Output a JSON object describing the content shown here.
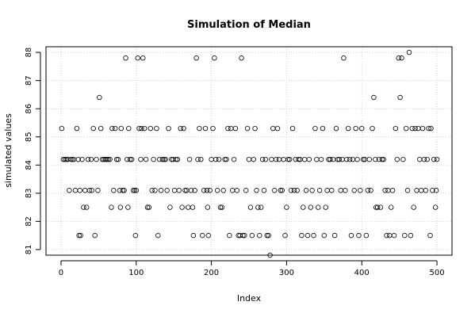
{
  "chart_data": {
    "type": "scatter",
    "title": "Simulation of Median",
    "xlabel": "Index",
    "ylabel": "simulated values",
    "xlim": [
      -20,
      520
    ],
    "ylim": [
      80.8,
      88.2
    ],
    "xticks": [
      0,
      100,
      200,
      300,
      400,
      500
    ],
    "yticks": [
      81,
      82,
      83,
      84,
      85,
      86,
      87,
      88
    ],
    "grid": true,
    "legend": "none",
    "marker": "open-circle",
    "series": [
      {
        "points": [
          [
            1,
            85.3
          ],
          [
            3,
            84.2
          ],
          [
            5,
            84.2
          ],
          [
            7,
            84.2
          ],
          [
            9,
            84.2
          ],
          [
            11,
            83.1
          ],
          [
            13,
            84.2
          ],
          [
            15,
            84.2
          ],
          [
            17,
            84.2
          ],
          [
            19,
            83.1
          ],
          [
            21,
            85.3
          ],
          [
            23,
            84.2
          ],
          [
            24,
            81.5
          ],
          [
            25,
            83.1
          ],
          [
            26,
            81.5
          ],
          [
            28,
            84.2
          ],
          [
            30,
            82.5
          ],
          [
            32,
            83.1
          ],
          [
            34,
            82.5
          ],
          [
            36,
            84.2
          ],
          [
            38,
            83.1
          ],
          [
            40,
            84.2
          ],
          [
            41,
            83.1
          ],
          [
            43,
            85.3
          ],
          [
            45,
            81.5
          ],
          [
            47,
            84.2
          ],
          [
            49,
            83.1
          ],
          [
            51,
            86.4
          ],
          [
            53,
            85.3
          ],
          [
            55,
            84.2
          ],
          [
            57,
            84.2
          ],
          [
            59,
            84.2
          ],
          [
            61,
            84.2
          ],
          [
            63,
            84.2
          ],
          [
            65,
            84.2
          ],
          [
            67,
            82.5
          ],
          [
            68,
            85.3
          ],
          [
            70,
            83.1
          ],
          [
            72,
            85.3
          ],
          [
            74,
            84.2
          ],
          [
            76,
            84.2
          ],
          [
            78,
            83.1
          ],
          [
            79,
            82.5
          ],
          [
            80,
            85.3
          ],
          [
            82,
            83.1
          ],
          [
            84,
            83.1
          ],
          [
            86,
            87.8
          ],
          [
            88,
            84.2
          ],
          [
            89,
            82.5
          ],
          [
            90,
            85.3
          ],
          [
            92,
            84.2
          ],
          [
            94,
            84.2
          ],
          [
            96,
            83.1
          ],
          [
            98,
            83.1
          ],
          [
            99,
            81.5
          ],
          [
            100,
            83.1
          ],
          [
            102,
            87.8
          ],
          [
            104,
            85.3
          ],
          [
            106,
            84.2
          ],
          [
            107,
            85.3
          ],
          [
            109,
            87.8
          ],
          [
            111,
            85.3
          ],
          [
            113,
            84.2
          ],
          [
            115,
            82.5
          ],
          [
            117,
            82.5
          ],
          [
            119,
            85.3
          ],
          [
            121,
            83.1
          ],
          [
            123,
            84.2
          ],
          [
            125,
            83.1
          ],
          [
            127,
            85.3
          ],
          [
            129,
            81.5
          ],
          [
            131,
            84.2
          ],
          [
            133,
            83.1
          ],
          [
            135,
            84.2
          ],
          [
            137,
            84.2
          ],
          [
            139,
            84.2
          ],
          [
            141,
            83.1
          ],
          [
            143,
            85.3
          ],
          [
            145,
            82.5
          ],
          [
            147,
            84.2
          ],
          [
            149,
            84.2
          ],
          [
            151,
            83.1
          ],
          [
            153,
            84.2
          ],
          [
            155,
            84.2
          ],
          [
            157,
            83.1
          ],
          [
            159,
            85.3
          ],
          [
            161,
            82.5
          ],
          [
            163,
            85.3
          ],
          [
            165,
            83.1
          ],
          [
            167,
            83.1
          ],
          [
            169,
            82.5
          ],
          [
            171,
            84.2
          ],
          [
            173,
            83.1
          ],
          [
            175,
            82.5
          ],
          [
            176,
            81.5
          ],
          [
            178,
            83.1
          ],
          [
            180,
            87.8
          ],
          [
            182,
            84.2
          ],
          [
            184,
            85.3
          ],
          [
            186,
            84.2
          ],
          [
            188,
            81.5
          ],
          [
            190,
            83.1
          ],
          [
            192,
            85.3
          ],
          [
            194,
            83.1
          ],
          [
            195,
            82.5
          ],
          [
            196,
            81.5
          ],
          [
            198,
            83.1
          ],
          [
            200,
            84.2
          ],
          [
            202,
            85.3
          ],
          [
            204,
            87.8
          ],
          [
            206,
            84.2
          ],
          [
            208,
            83.1
          ],
          [
            210,
            84.2
          ],
          [
            212,
            82.5
          ],
          [
            214,
            82.5
          ],
          [
            216,
            83.1
          ],
          [
            218,
            84.2
          ],
          [
            220,
            84.2
          ],
          [
            222,
            85.3
          ],
          [
            224,
            81.5
          ],
          [
            226,
            85.3
          ],
          [
            228,
            83.1
          ],
          [
            230,
            84.2
          ],
          [
            232,
            85.3
          ],
          [
            234,
            83.1
          ],
          [
            236,
            81.5
          ],
          [
            238,
            81.5
          ],
          [
            240,
            87.8
          ],
          [
            242,
            81.5
          ],
          [
            244,
            81.5
          ],
          [
            246,
            83.1
          ],
          [
            248,
            85.3
          ],
          [
            250,
            84.2
          ],
          [
            252,
            82.5
          ],
          [
            254,
            81.5
          ],
          [
            256,
            84.2
          ],
          [
            258,
            85.3
          ],
          [
            260,
            83.1
          ],
          [
            262,
            82.5
          ],
          [
            264,
            81.5
          ],
          [
            266,
            82.5
          ],
          [
            268,
            84.2
          ],
          [
            270,
            83.1
          ],
          [
            272,
            84.2
          ],
          [
            274,
            81.5
          ],
          [
            276,
            81.5
          ],
          [
            278,
            80.8
          ],
          [
            280,
            84.2
          ],
          [
            282,
            85.3
          ],
          [
            284,
            83.1
          ],
          [
            286,
            84.2
          ],
          [
            288,
            85.3
          ],
          [
            290,
            84.2
          ],
          [
            292,
            83.1
          ],
          [
            294,
            83.1
          ],
          [
            296,
            84.2
          ],
          [
            298,
            81.5
          ],
          [
            300,
            82.5
          ],
          [
            302,
            84.2
          ],
          [
            304,
            84.2
          ],
          [
            306,
            83.1
          ],
          [
            308,
            85.3
          ],
          [
            310,
            83.1
          ],
          [
            312,
            84.2
          ],
          [
            314,
            83.1
          ],
          [
            316,
            84.2
          ],
          [
            318,
            84.2
          ],
          [
            320,
            81.5
          ],
          [
            322,
            82.5
          ],
          [
            324,
            84.2
          ],
          [
            326,
            83.1
          ],
          [
            328,
            81.5
          ],
          [
            330,
            84.2
          ],
          [
            332,
            82.5
          ],
          [
            334,
            83.1
          ],
          [
            336,
            81.5
          ],
          [
            338,
            85.3
          ],
          [
            340,
            84.2
          ],
          [
            342,
            82.5
          ],
          [
            344,
            83.1
          ],
          [
            346,
            84.2
          ],
          [
            348,
            85.3
          ],
          [
            350,
            81.5
          ],
          [
            352,
            82.5
          ],
          [
            354,
            83.1
          ],
          [
            356,
            84.2
          ],
          [
            358,
            84.2
          ],
          [
            360,
            83.1
          ],
          [
            362,
            84.2
          ],
          [
            364,
            81.5
          ],
          [
            366,
            85.3
          ],
          [
            368,
            84.2
          ],
          [
            370,
            84.2
          ],
          [
            372,
            83.1
          ],
          [
            374,
            84.2
          ],
          [
            376,
            87.8
          ],
          [
            378,
            83.1
          ],
          [
            380,
            84.2
          ],
          [
            382,
            85.3
          ],
          [
            384,
            84.2
          ],
          [
            386,
            81.5
          ],
          [
            388,
            84.2
          ],
          [
            390,
            83.1
          ],
          [
            392,
            85.3
          ],
          [
            394,
            84.2
          ],
          [
            396,
            81.5
          ],
          [
            398,
            83.1
          ],
          [
            400,
            85.3
          ],
          [
            402,
            84.2
          ],
          [
            404,
            84.2
          ],
          [
            406,
            81.5
          ],
          [
            408,
            83.1
          ],
          [
            410,
            84.2
          ],
          [
            412,
            83.1
          ],
          [
            414,
            85.3
          ],
          [
            416,
            86.4
          ],
          [
            418,
            84.2
          ],
          [
            419,
            82.5
          ],
          [
            421,
            82.5
          ],
          [
            423,
            84.2
          ],
          [
            425,
            82.5
          ],
          [
            427,
            84.2
          ],
          [
            429,
            84.2
          ],
          [
            431,
            83.1
          ],
          [
            433,
            81.5
          ],
          [
            435,
            83.1
          ],
          [
            437,
            81.5
          ],
          [
            439,
            82.5
          ],
          [
            441,
            83.1
          ],
          [
            443,
            81.5
          ],
          [
            445,
            85.3
          ],
          [
            447,
            84.2
          ],
          [
            449,
            87.8
          ],
          [
            451,
            86.4
          ],
          [
            453,
            87.8
          ],
          [
            455,
            84.2
          ],
          [
            457,
            81.5
          ],
          [
            459,
            85.3
          ],
          [
            461,
            83.1
          ],
          [
            463,
            88.0
          ],
          [
            465,
            81.5
          ],
          [
            467,
            85.3
          ],
          [
            469,
            82.5
          ],
          [
            471,
            85.3
          ],
          [
            473,
            83.1
          ],
          [
            475,
            85.3
          ],
          [
            477,
            84.2
          ],
          [
            479,
            83.1
          ],
          [
            481,
            85.3
          ],
          [
            483,
            84.2
          ],
          [
            485,
            83.1
          ],
          [
            487,
            84.2
          ],
          [
            489,
            85.3
          ],
          [
            491,
            81.5
          ],
          [
            492,
            85.3
          ],
          [
            494,
            83.1
          ],
          [
            496,
            84.2
          ],
          [
            498,
            82.5
          ],
          [
            499,
            83.1
          ],
          [
            500,
            84.2
          ]
        ]
      }
    ]
  }
}
